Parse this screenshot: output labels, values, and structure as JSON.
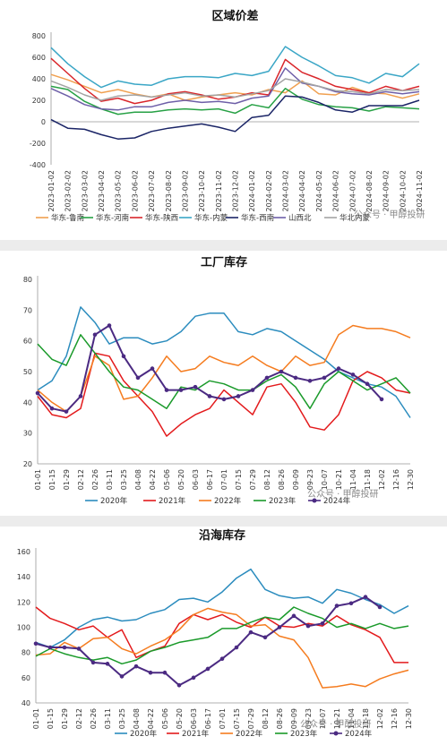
{
  "watermark": "公众号 · 甲醇投研",
  "chart_data": [
    {
      "type": "line",
      "title": "区域价差",
      "ylim": [
        -400,
        800
      ],
      "yticks": [
        800,
        600,
        400,
        200,
        0,
        -200,
        -400
      ],
      "xlabels": [
        "2023-01-02",
        "2023-02-02",
        "2023-03-02",
        "2023-04-02",
        "2023-05-02",
        "2023-06-02",
        "2023-07-02",
        "2023-08-02",
        "2023-09-02",
        "2023-10-02",
        "2023-11-02",
        "2023-12-02",
        "2024-01-02",
        "2024-02-02",
        "2024-03-02",
        "2024-04-02",
        "2024-05-02",
        "2024-06-02",
        "2024-07-02",
        "2024-08-02",
        "2024-09-02",
        "2024-10-02",
        "2024-11-02"
      ],
      "grid": false,
      "legend": "bottom",
      "series": [
        {
          "name": "华东-鲁南",
          "color": "#f0a050",
          "values": [
            440,
            390,
            330,
            270,
            300,
            260,
            230,
            260,
            200,
            230,
            250,
            270,
            250,
            300,
            270,
            380,
            260,
            250,
            320,
            270,
            260,
            220,
            260
          ]
        },
        {
          "name": "华东-河南",
          "color": "#27a145",
          "values": [
            330,
            300,
            190,
            120,
            70,
            90,
            90,
            110,
            120,
            110,
            120,
            80,
            160,
            130,
            310,
            210,
            160,
            140,
            130,
            100,
            140,
            130,
            120
          ]
        },
        {
          "name": "华东-陕西",
          "color": "#d9262b",
          "values": [
            590,
            450,
            310,
            190,
            220,
            170,
            200,
            260,
            280,
            250,
            210,
            230,
            270,
            250,
            580,
            460,
            400,
            330,
            300,
            270,
            330,
            290,
            330
          ]
        },
        {
          "name": "华东-内蒙",
          "color": "#3aa6c6",
          "values": [
            690,
            540,
            420,
            320,
            380,
            350,
            340,
            400,
            420,
            420,
            410,
            450,
            430,
            470,
            700,
            600,
            520,
            430,
            410,
            360,
            450,
            420,
            540
          ]
        },
        {
          "name": "华东-西南",
          "color": "#1a2466",
          "values": [
            20,
            -60,
            -70,
            -120,
            -160,
            -150,
            -90,
            -60,
            -40,
            -20,
            -50,
            -90,
            40,
            60,
            240,
            230,
            180,
            110,
            90,
            150,
            150,
            150,
            200
          ]
        },
        {
          "name": "山西北",
          "color": "#6e5fa8",
          "values": [
            310,
            240,
            160,
            120,
            110,
            140,
            140,
            180,
            200,
            180,
            190,
            170,
            220,
            240,
            500,
            360,
            330,
            280,
            260,
            250,
            280,
            260,
            280
          ]
        },
        {
          "name": "华北内蒙",
          "color": "#a3a3a3",
          "values": [
            380,
            320,
            250,
            200,
            240,
            250,
            230,
            250,
            270,
            240,
            250,
            230,
            260,
            290,
            400,
            370,
            330,
            290,
            280,
            260,
            300,
            290,
            300
          ]
        }
      ]
    },
    {
      "type": "line",
      "title": "工厂库存",
      "ylim": [
        20,
        80
      ],
      "yticks": [
        80,
        70,
        60,
        50,
        40,
        30,
        20
      ],
      "xlabels": [
        "01-01",
        "01-15",
        "01-29",
        "02-12",
        "02-26",
        "03-11",
        "03-25",
        "04-08",
        "04-22",
        "05-06",
        "05-20",
        "06-03",
        "06-17",
        "07-01",
        "07-15",
        "07-29",
        "08-12",
        "08-26",
        "09-09",
        "09-23",
        "10-07",
        "10-21",
        "11-04",
        "11-18",
        "12-02",
        "12-16",
        "12-30"
      ],
      "grid": false,
      "legend": "bottom",
      "series": [
        {
          "name": "2020年",
          "color": "#2b8cbe",
          "values": [
            44,
            47,
            55,
            71,
            66,
            59,
            61,
            61,
            59,
            60,
            63,
            68,
            69,
            69,
            63,
            62,
            64,
            63,
            60,
            57,
            54,
            50,
            48,
            46,
            45,
            42,
            35
          ]
        },
        {
          "name": "2021年",
          "color": "#e31a1c",
          "values": [
            42,
            36,
            35,
            38,
            56,
            55,
            47,
            42,
            37,
            29,
            33,
            36,
            38,
            44,
            40,
            36,
            45,
            46,
            40,
            32,
            31,
            36,
            47,
            50,
            48,
            44,
            43
          ]
        },
        {
          "name": "2022年",
          "color": "#f57c1f",
          "values": [
            44,
            40,
            37,
            42,
            55,
            52,
            41,
            42,
            48,
            55,
            50,
            51,
            55,
            53,
            52,
            55,
            52,
            50,
            55,
            52,
            53,
            62,
            65,
            64,
            64,
            63,
            61
          ]
        },
        {
          "name": "2023年",
          "color": "#1a9a2a",
          "values": [
            59,
            54,
            52,
            62,
            56,
            50,
            45,
            44,
            41,
            38,
            45,
            44,
            47,
            46,
            44,
            44,
            47,
            49,
            45,
            38,
            46,
            50,
            47,
            44,
            46,
            48,
            43
          ]
        },
        {
          "name": "2024年",
          "color": "#4b2a82",
          "values": [
            43,
            38,
            37,
            42,
            62,
            65,
            55,
            48,
            51,
            44,
            44,
            45,
            42,
            41,
            42,
            44,
            48,
            50,
            48,
            47,
            48,
            51,
            49,
            46,
            41,
            null,
            null
          ]
        }
      ]
    },
    {
      "type": "line",
      "title": "沿海库存",
      "ylim": [
        40,
        160
      ],
      "yticks": [
        160,
        140,
        120,
        100,
        80,
        60,
        40
      ],
      "xlabels": [
        "01-01",
        "01-15",
        "01-29",
        "02-12",
        "02-26",
        "03-11",
        "03-25",
        "04-08",
        "04-22",
        "05-06",
        "05-20",
        "06-03",
        "06-17",
        "07-01",
        "07-15",
        "07-29",
        "08-12",
        "08-26",
        "09-09",
        "09-23",
        "10-07",
        "10-21",
        "11-04",
        "11-18",
        "12-02",
        "12-16",
        "12-30"
      ],
      "grid": false,
      "legend": "bottom",
      "series": [
        {
          "name": "2020年",
          "color": "#2b8cbe",
          "values": [
            88,
            84,
            90,
            100,
            106,
            108,
            105,
            106,
            111,
            114,
            122,
            123,
            120,
            128,
            139,
            146,
            130,
            125,
            123,
            124,
            119,
            130,
            127,
            122,
            118,
            111,
            117
          ]
        },
        {
          "name": "2021年",
          "color": "#e31a1c",
          "values": [
            116,
            107,
            103,
            98,
            101,
            92,
            98,
            76,
            81,
            85,
            103,
            110,
            106,
            110,
            104,
            100,
            108,
            101,
            100,
            103,
            101,
            109,
            102,
            98,
            92,
            72,
            72
          ]
        },
        {
          "name": "2022年",
          "color": "#f57c1f",
          "values": [
            78,
            79,
            88,
            83,
            91,
            92,
            83,
            79,
            85,
            90,
            98,
            110,
            115,
            112,
            110,
            101,
            102,
            93,
            90,
            76,
            52,
            53,
            55,
            53,
            59,
            63,
            66
          ]
        },
        {
          "name": "2023年",
          "color": "#1a9a2a",
          "values": [
            77,
            83,
            79,
            76,
            74,
            76,
            71,
            74,
            81,
            84,
            88,
            90,
            92,
            99,
            99,
            104,
            108,
            106,
            116,
            111,
            107,
            100,
            103,
            99,
            103,
            99,
            101
          ]
        },
        {
          "name": "2024年",
          "color": "#4b2a82",
          "values": [
            87,
            84,
            84,
            83,
            72,
            71,
            61,
            69,
            64,
            64,
            54,
            60,
            67,
            75,
            84,
            96,
            92,
            100,
            109,
            101,
            103,
            117,
            119,
            124,
            116,
            null,
            null
          ]
        }
      ]
    }
  ]
}
